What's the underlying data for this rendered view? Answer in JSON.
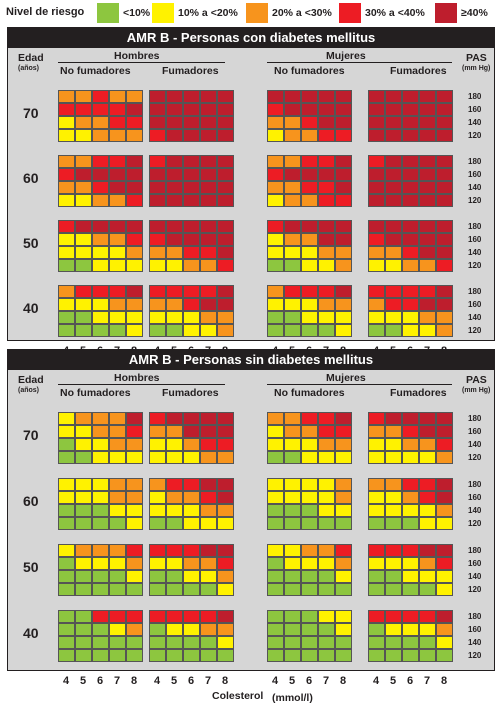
{
  "legend": {
    "title": "Nivel de riesgo",
    "items": [
      {
        "label": "<10%",
        "color": "#8dc63f"
      },
      {
        "label": "10% a <20%",
        "color": "#fff200"
      },
      {
        "label": "20% a <30%",
        "color": "#f7941d"
      },
      {
        "label": "30% a <40%",
        "color": "#ed1c24"
      },
      {
        "label": "≥40%",
        "color": "#be1e2d"
      }
    ]
  },
  "labels": {
    "edad": "Edad",
    "anos": "(años)",
    "hombres": "Hombres",
    "mujeres": "Mujeres",
    "no_fumadores": "No fumadores",
    "fumadores": "Fumadores",
    "pas": "PAS",
    "pas_unit": "(mm Hg)",
    "colesterol": "Colesterol",
    "colesterol_unit": "(mmol/l)"
  },
  "ages": [
    "70",
    "60",
    "50",
    "40"
  ],
  "sbp": [
    "180",
    "160",
    "140",
    "120"
  ],
  "chol": [
    "4",
    "5",
    "6",
    "7",
    "8"
  ],
  "panels": [
    {
      "title": "AMR B - Personas con diabetes mellitus",
      "grids": [
        [
          [
            "OOROO",
            "RRRRD",
            "YOORR",
            "YYOOO"
          ],
          [
            "DDDDD",
            "DDDDD",
            "DDDDD",
            "RDDDD"
          ],
          [
            "DDDDD",
            "RDDDD",
            "OORDD",
            "YOORR"
          ],
          [
            "DDDDD",
            "DDDDD",
            "DDDDD",
            "DDDDD"
          ]
        ],
        [
          [
            "OORRD",
            "RDDDD",
            "OORDD",
            "YYOOR"
          ],
          [
            "RDDDD",
            "DDDDD",
            "DDDDD",
            "DDDDD"
          ],
          [
            "OORRD",
            "RDDDD",
            "OORRD",
            "YOORR"
          ],
          [
            "RDDDD",
            "DDDDD",
            "DDDDD",
            "DDDDD"
          ]
        ],
        [
          [
            "RDDDD",
            "YYOOR",
            "YYYYO",
            "GGYYY"
          ],
          [
            "DDDDD",
            "RDDDD",
            "OORRD",
            "YYOOR"
          ],
          [
            "RDDDD",
            "YOODD",
            "YYYOO",
            "GGYYO"
          ],
          [
            "DDDDD",
            "RDDDD",
            "OORDD",
            "YYOOR"
          ]
        ],
        [
          [
            "ORRRD",
            "YYYOO",
            "GGYYY",
            "GGGGY"
          ],
          [
            "RRRRD",
            "OORDD",
            "YYYOO",
            "GGYYO"
          ],
          [
            "ORRRD",
            "YYYOO",
            "GGYYY",
            "GGGGY"
          ],
          [
            "RRRRD",
            "ORRDD",
            "YYYOO",
            "GGYYO"
          ]
        ]
      ]
    },
    {
      "title": "AMR B - Personas sin diabetes mellitus",
      "grids": [
        [
          [
            "YOOOD",
            "YYOOR",
            "GYYOO",
            "GGYYY"
          ],
          [
            "RDDDD",
            "OODDD",
            "YYORR",
            "YYYOO"
          ],
          [
            "OORRD",
            "YOORR",
            "YYYOO",
            "GGYYY"
          ],
          [
            "RDDDD",
            "OORDD",
            "YYOOR",
            "YYYYO"
          ]
        ],
        [
          [
            "YYYOO",
            "YYYOO",
            "GGGYY",
            "GGGGY"
          ],
          [
            "ORRDD",
            "YOORD",
            "YYYOO",
            "GGYYY"
          ],
          [
            "YYYYO",
            "YYYYO",
            "GGGYY",
            "GGGGG"
          ],
          [
            "OORRD",
            "YYORD",
            "YYYYO",
            "GGGYY"
          ]
        ],
        [
          [
            "YOOOR",
            "GYYYO",
            "GGGGY",
            "GGGGG"
          ],
          [
            "RRRDD",
            "YYOOR",
            "GGYYO",
            "GGGGY"
          ],
          [
            "YYOOR",
            "GYYYO",
            "GGGGY",
            "GGGGG"
          ],
          [
            "RRRDD",
            "YYYOR",
            "GGYYY",
            "GGGGY"
          ]
        ],
        [
          [
            "GGRRR",
            "GGGYO",
            "GGGGG",
            "GGGGG"
          ],
          [
            "RRRRD",
            "GYYOO",
            "GGGGY",
            "GGGGG"
          ],
          [
            "GGGYY",
            "GGGGY",
            "GGGGG",
            "GGGGG"
          ],
          [
            "RRRRD",
            "GYYYO",
            "GGGGY",
            "GGGGG"
          ]
        ]
      ]
    }
  ]
}
